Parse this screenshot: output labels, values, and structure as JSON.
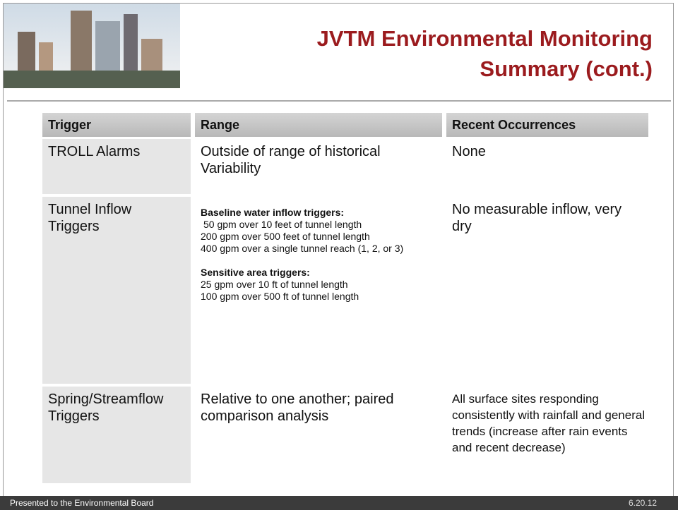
{
  "header": {
    "title": [
      "JVTM Environmental Monitoring",
      "Summary (cont.)"
    ]
  },
  "table": {
    "columns": [
      "Trigger",
      "Range",
      "Recent Occurrences"
    ],
    "rows": [
      {
        "trigger": "TROLL Alarms",
        "range": "Outside of range of historical Variability",
        "occurrences": "None"
      },
      {
        "trigger": "Tunnel Inflow Triggers",
        "range_groups": [
          {
            "heading": "Baseline water inflow triggers:",
            "lines": [
              "50 gpm over 10 feet of tunnel length",
              "200 gpm over  500 feet of tunnel length",
              "400 gpm over a single tunnel reach (1, 2, or 3)"
            ]
          },
          {
            "heading": "Sensitive area triggers:",
            "lines": [
              "25 gpm over 10 ft of tunnel length",
              "100 gpm over 500 ft of tunnel length"
            ]
          }
        ],
        "occurrences": "No measurable inflow, very dry"
      },
      {
        "trigger": "Spring/Streamflow Triggers",
        "range": "Relative to one another; paired comparison analysis",
        "occurrences": "All surface sites responding consistently with rainfall and general trends (increase after rain events and recent decrease)"
      }
    ]
  },
  "footer": {
    "left": "Presented to the Environmental Board",
    "right": "6.20.12"
  }
}
